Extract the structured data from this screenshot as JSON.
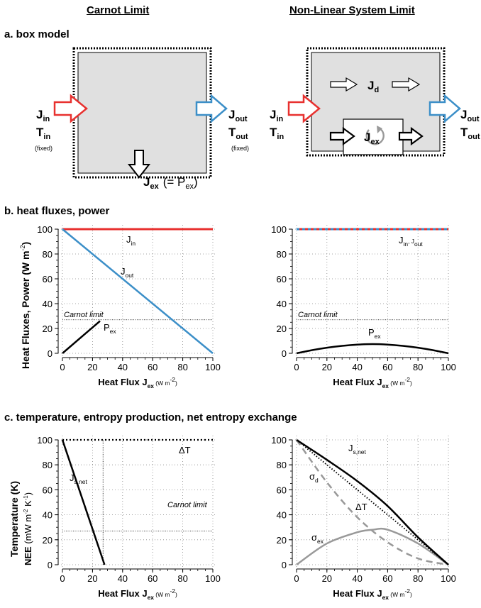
{
  "columns": {
    "left": "Carnot Limit",
    "right": "Non-Linear System Limit"
  },
  "sections": {
    "a": "a. box model",
    "b": "b. heat fluxes, power",
    "c": "c. temperature, entropy production, net entropy exchange"
  },
  "box_model": {
    "J": "J",
    "T": "T",
    "in": "in",
    "out": "out",
    "ex": "ex",
    "d": "d",
    "fixed": "(fixed)",
    "pex_eq": "(= P",
    "pex_close": ")"
  },
  "axes": {
    "xlabel_main": "Heat Flux J",
    "xlabel_sub": "ex",
    "xlabel_unit": "(W m",
    "xlabel_unit_sup": "-2",
    "xlabel_close": ")",
    "b_ylabel": "Heat Fluxes, Power  (W m",
    "b_ylabel_sup": "-2",
    "b_ylabel_close": ")",
    "c_ylabel_1": "Temperature (K)",
    "c_ylabel_2a": "NEE",
    "c_ylabel_2b": " (mW m",
    "c_ylabel_2sup1": "-2",
    "c_ylabel_2c": " K",
    "c_ylabel_2sup2": "-1",
    "c_ylabel_2d": ")",
    "ticks": [
      "0",
      "20",
      "40",
      "60",
      "80",
      "100"
    ]
  },
  "annotations": {
    "carnot_limit": "Carnot limit",
    "Jin": "J",
    "Jin_sub": "in",
    "Jout": "J",
    "Jout_sub": "out",
    "Pex": "P",
    "Pex_sub": "ex",
    "Jin_Jout_sub1": "in",
    "Jin_Jout_sep": ", J",
    "Jin_Jout_sub2": "out",
    "deltaT": "ΔT",
    "Jsnet": "J",
    "Jsnet_sub": "s,net",
    "sigma": "σ",
    "sigma_d_sub": "d",
    "sigma_ex_sub": "ex"
  },
  "colors": {
    "red": "#e8312f",
    "blue": "#3c8fc8",
    "gray": "#999999",
    "box_fill": "#e0e0e0"
  },
  "chart_data": [
    {
      "id": "b-left",
      "type": "line",
      "xlim": [
        0,
        100
      ],
      "ylim": [
        0,
        100
      ],
      "grid": true,
      "series": [
        {
          "name": "J_in",
          "x": [
            0,
            100
          ],
          "y": [
            100,
            100
          ]
        },
        {
          "name": "J_out",
          "x": [
            0,
            100
          ],
          "y": [
            100,
            0
          ]
        },
        {
          "name": "P_ex",
          "x": [
            0,
            25
          ],
          "y": [
            0,
            26
          ]
        }
      ],
      "hlines": [
        {
          "label": "Carnot limit",
          "y": 27
        }
      ]
    },
    {
      "id": "b-right",
      "type": "line",
      "xlim": [
        0,
        100
      ],
      "ylim": [
        0,
        100
      ],
      "grid": true,
      "series": [
        {
          "name": "J_in, J_out",
          "x": [
            0,
            100
          ],
          "y": [
            100,
            100
          ]
        },
        {
          "name": "P_ex",
          "x": [
            0,
            10,
            20,
            30,
            40,
            50,
            60,
            70,
            80,
            90,
            100
          ],
          "y": [
            0,
            2.5,
            4.5,
            6,
            7,
            7.4,
            7,
            6,
            4.5,
            2.5,
            0
          ]
        }
      ],
      "hlines": [
        {
          "label": "Carnot limit",
          "y": 27
        }
      ]
    },
    {
      "id": "c-left",
      "type": "line",
      "xlim": [
        0,
        100
      ],
      "ylim": [
        0,
        100
      ],
      "grid": true,
      "series": [
        {
          "name": "ΔT",
          "x": [
            0,
            100
          ],
          "y": [
            100,
            100
          ]
        },
        {
          "name": "J_s,net",
          "x": [
            0,
            28
          ],
          "y": [
            100,
            0
          ]
        }
      ],
      "hlines": [
        {
          "label": "Carnot limit",
          "y": 27
        }
      ],
      "vlines": [
        {
          "x": 27
        }
      ]
    },
    {
      "id": "c-right",
      "type": "line",
      "xlim": [
        0,
        100
      ],
      "ylim": [
        0,
        100
      ],
      "grid": true,
      "series": [
        {
          "name": "J_s,net",
          "x": [
            0,
            20,
            40,
            60,
            80,
            100
          ],
          "y": [
            100,
            84,
            67,
            47,
            22,
            0
          ]
        },
        {
          "name": "ΔT",
          "x": [
            0,
            100
          ],
          "y": [
            100,
            0
          ]
        },
        {
          "name": "σ_d",
          "x": [
            0,
            20,
            40,
            60,
            80,
            100
          ],
          "y": [
            100,
            66,
            38,
            18,
            5,
            0
          ]
        },
        {
          "name": "σ_ex",
          "x": [
            0,
            20,
            40,
            50,
            60,
            80,
            100
          ],
          "y": [
            0,
            17,
            26,
            28,
            28,
            17,
            0
          ]
        }
      ]
    }
  ]
}
